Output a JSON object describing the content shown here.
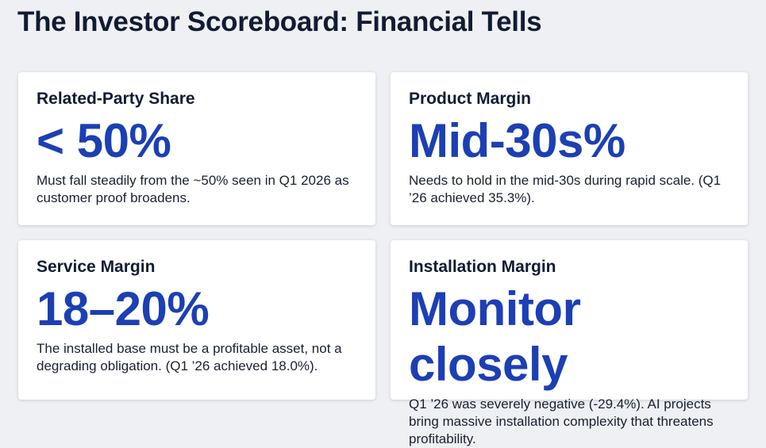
{
  "header": {
    "title": "The Investor Scoreboard: Financial Tells"
  },
  "cards": [
    {
      "label": "Related-Party Share",
      "value": "< 50%",
      "description": "Must fall steadily from the ~50% seen in Q1 2026 as customer proof broadens."
    },
    {
      "label": "Product Margin",
      "value": "Mid-30s%",
      "description": "Needs to hold in the mid-30s during rapid scale. (Q1 ’26 achieved 35.3%)."
    },
    {
      "label": "Service Margin",
      "value": "18–20%",
      "description": "The installed base must be a profitable asset, not a degrading obligation. (Q1 ’26 achieved 18.0%)."
    },
    {
      "label": "Installation Margin",
      "value": "Monitor closely",
      "description": "Q1 ’26 was severely negative (-29.4%). AI projects bring massive installation complexity that threatens profitability."
    }
  ]
}
